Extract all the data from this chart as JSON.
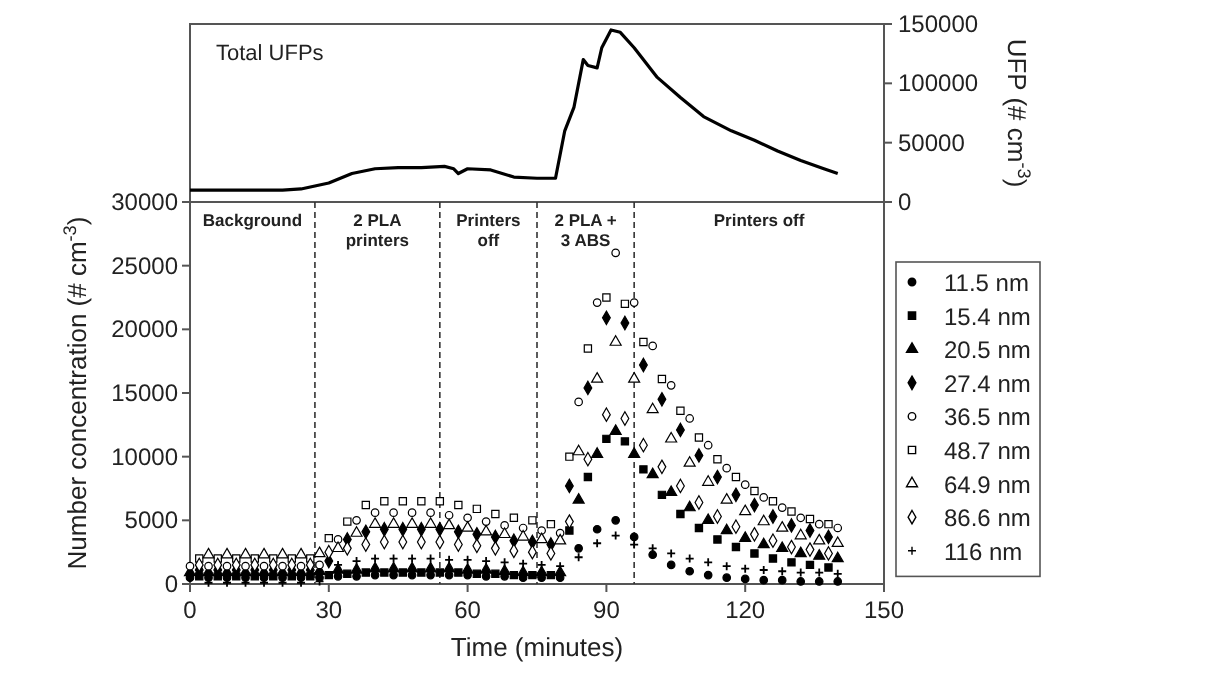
{
  "chart_data": [
    {
      "type": "line",
      "title": "Total UFPs",
      "y2label": "UFP (# cm$^{-3}$)",
      "x": [
        0,
        10,
        20,
        24,
        30,
        35,
        40,
        45,
        50,
        55,
        57,
        58,
        60,
        65,
        70,
        75,
        79,
        80,
        81,
        83,
        85,
        86,
        88,
        89,
        91,
        93,
        96,
        101,
        106,
        111,
        117,
        122,
        127,
        132,
        137,
        140
      ],
      "xlim": [
        0,
        150
      ],
      "y2lim": [
        0,
        150000
      ],
      "y2ticks": [
        0,
        50000,
        100000,
        150000
      ],
      "tick_labels": "y2",
      "series": [
        {
          "color": "#000000",
          "axis": "y2",
          "values": [
            10000,
            10000,
            10000,
            11000,
            16000,
            24000,
            28000,
            29000,
            29000,
            30000,
            28000,
            24000,
            28000,
            27000,
            21000,
            20000,
            20000,
            40000,
            60000,
            80000,
            120000,
            115000,
            113000,
            130000,
            145000,
            143000,
            130000,
            105000,
            88000,
            72000,
            60000,
            52000,
            43000,
            35000,
            28000,
            24000
          ]
        }
      ]
    },
    {
      "type": "scatter",
      "xlabel": "Time (minutes)",
      "ylabel": "Number concentration (# cm$^{-3}$)",
      "xlim": [
        0,
        150
      ],
      "xticks": [
        0,
        30,
        60,
        90,
        120,
        150
      ],
      "ylim": [
        0,
        30000
      ],
      "yticks": [
        0,
        5000,
        10000,
        15000,
        20000,
        25000,
        30000
      ],
      "legend": "right",
      "ref_lines": [
        {
          "axis": "x",
          "value": 27,
          "line_style": "dashed"
        },
        {
          "axis": "x",
          "value": 54,
          "line_style": "dashed"
        },
        {
          "axis": "x",
          "value": 75,
          "line_style": "dashed"
        },
        {
          "axis": "x",
          "value": 96,
          "line_style": "dashed"
        }
      ],
      "annotations": [
        "Background",
        "2 PLA\nprinters",
        "Printers\noff",
        "2 PLA +\n3 ABS",
        "Printers off"
      ],
      "series": [
        {
          "name": "11.5 nm",
          "color": "#000000",
          "marker": "circle",
          "x": [
            0,
            4,
            8,
            12,
            16,
            20,
            24,
            28,
            32,
            36,
            40,
            44,
            48,
            52,
            56,
            60,
            64,
            68,
            72,
            76,
            80,
            84,
            88,
            92,
            96,
            100,
            104,
            108,
            112,
            116,
            120,
            124,
            128,
            132,
            136,
            140
          ],
          "values": [
            500,
            500,
            500,
            500,
            500,
            500,
            500,
            500,
            600,
            600,
            700,
            700,
            700,
            700,
            700,
            700,
            600,
            600,
            500,
            500,
            500,
            2800,
            4300,
            5000,
            3700,
            2300,
            1500,
            1000,
            700,
            500,
            400,
            300,
            300,
            200,
            200,
            200
          ]
        },
        {
          "name": "15.4 nm",
          "color": "#000000",
          "marker": "square",
          "x": [
            2,
            6,
            10,
            14,
            18,
            22,
            26,
            30,
            34,
            38,
            42,
            46,
            50,
            54,
            58,
            62,
            66,
            70,
            74,
            78,
            82,
            86,
            90,
            94,
            98,
            102,
            106,
            110,
            114,
            118,
            122,
            126,
            130,
            134,
            138
          ],
          "values": [
            600,
            600,
            600,
            600,
            600,
            600,
            600,
            700,
            800,
            900,
            900,
            900,
            900,
            900,
            900,
            800,
            800,
            700,
            700,
            700,
            4200,
            8400,
            11400,
            11200,
            9000,
            7000,
            5500,
            4400,
            3500,
            2900,
            2400,
            2000,
            1700,
            1500,
            1300
          ]
        },
        {
          "name": "20.5 nm",
          "color": "#000000",
          "marker": "triangle",
          "x": [
            0,
            4,
            8,
            12,
            16,
            20,
            24,
            28,
            32,
            36,
            40,
            44,
            48,
            52,
            56,
            60,
            64,
            68,
            72,
            76,
            80,
            84,
            88,
            92,
            96,
            100,
            104,
            108,
            112,
            116,
            120,
            124,
            128,
            132,
            136,
            140
          ],
          "values": [
            900,
            900,
            900,
            900,
            900,
            900,
            900,
            1000,
            1100,
            1100,
            1200,
            1200,
            1200,
            1200,
            1200,
            1100,
            1100,
            1000,
            900,
            900,
            900,
            6600,
            10200,
            12000,
            10200,
            8600,
            7200,
            6000,
            5000,
            4200,
            3600,
            3100,
            2800,
            2400,
            2200,
            2000
          ]
        },
        {
          "name": "27.4 nm",
          "color": "#000000",
          "marker": "diamond",
          "x": [
            2,
            6,
            10,
            14,
            18,
            22,
            26,
            30,
            34,
            38,
            42,
            46,
            50,
            54,
            58,
            62,
            66,
            70,
            74,
            78,
            82,
            86,
            90,
            94,
            98,
            102,
            106,
            110,
            114,
            118,
            122,
            126,
            130,
            134,
            138
          ],
          "values": [
            1100,
            1100,
            1100,
            1100,
            1100,
            1100,
            1100,
            1800,
            3500,
            4100,
            4300,
            4300,
            4300,
            4300,
            4100,
            3900,
            3700,
            3400,
            3300,
            3100,
            7700,
            15400,
            20900,
            20500,
            17200,
            14500,
            12100,
            10100,
            8400,
            7000,
            6200,
            5300,
            4600,
            4200,
            3700
          ]
        },
        {
          "name": "36.5 nm",
          "color": "#000000",
          "marker": "circle-open",
          "x": [
            0,
            4,
            8,
            12,
            16,
            20,
            24,
            28,
            32,
            36,
            40,
            44,
            48,
            52,
            56,
            60,
            64,
            68,
            72,
            76,
            80,
            84,
            88,
            92,
            96,
            100,
            104,
            108,
            112,
            116,
            120,
            124,
            128,
            132,
            136,
            140
          ],
          "values": [
            1400,
            1400,
            1400,
            1400,
            1400,
            1400,
            1400,
            1500,
            3500,
            5000,
            5600,
            5600,
            5600,
            5600,
            5400,
            5200,
            4900,
            4600,
            4400,
            4200,
            4000,
            14300,
            22100,
            26000,
            22100,
            18700,
            15600,
            13000,
            10900,
            9100,
            7800,
            6800,
            6000,
            5200,
            4700,
            4400
          ]
        },
        {
          "name": "48.7 nm",
          "color": "#000000",
          "marker": "square-open",
          "x": [
            2,
            6,
            10,
            14,
            18,
            22,
            26,
            30,
            34,
            38,
            42,
            46,
            50,
            54,
            58,
            62,
            66,
            70,
            74,
            78,
            82,
            86,
            90,
            94,
            98,
            102,
            106,
            110,
            114,
            118,
            122,
            126,
            130,
            134,
            138
          ],
          "values": [
            2000,
            2000,
            2000,
            2000,
            2000,
            2000,
            2000,
            3600,
            4900,
            6200,
            6500,
            6500,
            6500,
            6500,
            6200,
            5900,
            5500,
            5200,
            5000,
            4700,
            10000,
            18500,
            22500,
            22000,
            19000,
            16100,
            13600,
            11500,
            9800,
            8400,
            7300,
            6500,
            5700,
            5100,
            4700
          ]
        },
        {
          "name": "64.9 nm",
          "color": "#000000",
          "marker": "triangle-open",
          "x": [
            4,
            8,
            12,
            16,
            20,
            24,
            28,
            32,
            36,
            40,
            44,
            48,
            52,
            56,
            60,
            64,
            68,
            72,
            76,
            80,
            84,
            88,
            92,
            96,
            100,
            104,
            108,
            112,
            116,
            120,
            124,
            128,
            132,
            136,
            140
          ],
          "values": [
            2300,
            2300,
            2300,
            2300,
            2300,
            2300,
            2400,
            2800,
            4000,
            4700,
            4700,
            4700,
            4700,
            4600,
            4400,
            4100,
            3900,
            3700,
            3500,
            3400,
            10400,
            16100,
            19000,
            16100,
            13700,
            11400,
            9500,
            8000,
            6600,
            5700,
            4900,
            4400,
            3800,
            3400,
            3200
          ]
        },
        {
          "name": "86.6 nm",
          "color": "#000000",
          "marker": "diamond-open",
          "x": [
            2,
            6,
            10,
            14,
            18,
            22,
            26,
            30,
            34,
            38,
            42,
            46,
            50,
            54,
            58,
            62,
            66,
            70,
            74,
            78,
            82,
            86,
            90,
            94,
            98,
            102,
            106,
            110,
            114,
            118,
            122,
            126,
            130,
            134,
            138
          ],
          "values": [
            1500,
            1500,
            1500,
            1500,
            1500,
            1500,
            1500,
            2500,
            2800,
            3100,
            3300,
            3300,
            3300,
            3300,
            3100,
            3000,
            2800,
            2600,
            2500,
            2400,
            4900,
            9800,
            13300,
            13000,
            10900,
            9200,
            7700,
            6400,
            5300,
            4500,
            3900,
            3400,
            2900,
            2700,
            2400
          ]
        },
        {
          "name": "116 nm",
          "color": "#000000",
          "marker": "cross",
          "x": [
            4,
            8,
            12,
            16,
            20,
            24,
            28,
            32,
            36,
            40,
            44,
            48,
            52,
            56,
            60,
            64,
            68,
            72,
            76,
            80,
            84,
            88,
            92,
            96,
            100,
            104,
            108,
            112,
            116,
            120,
            124,
            128,
            132,
            136,
            140
          ],
          "values": [
            100,
            100,
            100,
            100,
            100,
            100,
            200,
            1500,
            1800,
            2000,
            2000,
            2000,
            2000,
            1900,
            1900,
            1800,
            1700,
            1600,
            1500,
            1400,
            2100,
            3200,
            3800,
            3100,
            2800,
            2400,
            2000,
            1700,
            1400,
            1200,
            1100,
            1000,
            900,
            900,
            800
          ]
        }
      ]
    }
  ]
}
